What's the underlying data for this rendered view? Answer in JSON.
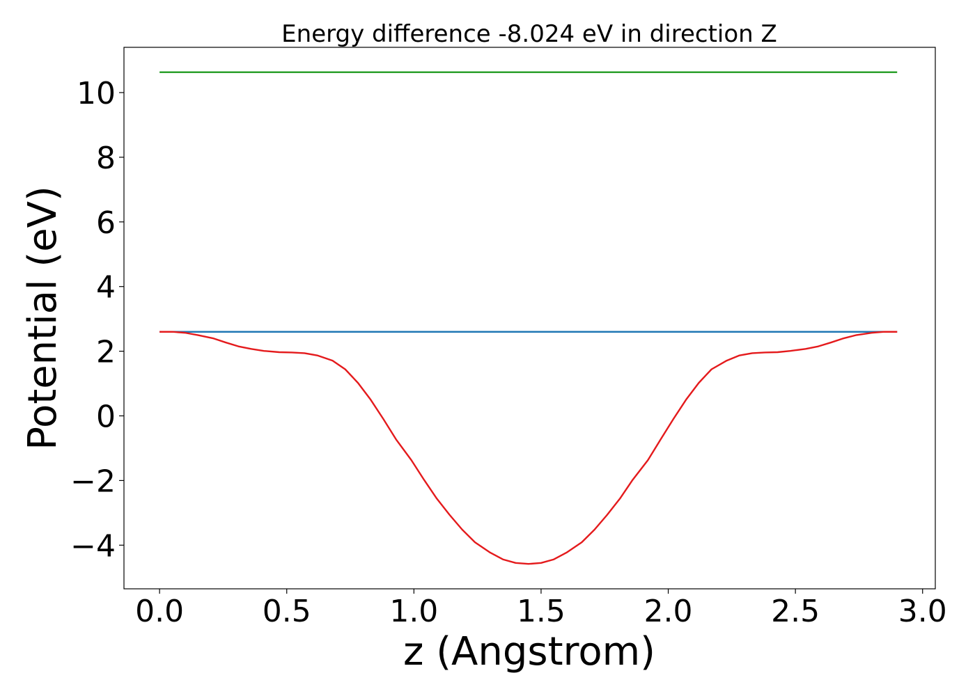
{
  "chart_data": {
    "type": "line",
    "title": "Energy difference -8.024 eV in direction Z",
    "xlabel": "z (Angstrom)",
    "ylabel": "Potential (eV)",
    "xlim": [
      -0.14,
      3.05
    ],
    "ylim": [
      -5.35,
      11.4
    ],
    "xticks": [
      {
        "value": 0.0,
        "label": "0.0"
      },
      {
        "value": 0.5,
        "label": "0.5"
      },
      {
        "value": 1.0,
        "label": "1.0"
      },
      {
        "value": 1.5,
        "label": "1.5"
      },
      {
        "value": 2.0,
        "label": "2.0"
      },
      {
        "value": 2.5,
        "label": "2.5"
      },
      {
        "value": 3.0,
        "label": "3.0"
      }
    ],
    "yticks": [
      {
        "value": -4,
        "label": "−4"
      },
      {
        "value": -2,
        "label": "−2"
      },
      {
        "value": 0,
        "label": "0"
      },
      {
        "value": 2,
        "label": "2"
      },
      {
        "value": 4,
        "label": "4"
      },
      {
        "value": 6,
        "label": "6"
      },
      {
        "value": 8,
        "label": "8"
      },
      {
        "value": 10,
        "label": "10"
      }
    ],
    "grid": false,
    "legend": "none",
    "series": [
      {
        "color": "#2ca02c",
        "x": [
          0.0,
          2.9
        ],
        "y": [
          10.63,
          10.63
        ]
      },
      {
        "color": "#1f77b4",
        "x": [
          0.0,
          2.9
        ],
        "y": [
          2.6,
          2.6
        ]
      },
      {
        "color": "#e41a1c",
        "x": [
          0.0,
          0.05,
          0.1,
          0.15,
          0.21,
          0.26,
          0.31,
          0.36,
          0.41,
          0.47,
          0.52,
          0.57,
          0.62,
          0.68,
          0.73,
          0.78,
          0.83,
          0.88,
          0.93,
          0.99,
          1.04,
          1.09,
          1.14,
          1.19,
          1.24,
          1.3,
          1.35,
          1.4,
          1.45,
          1.5,
          1.55,
          1.6,
          1.66,
          1.71,
          1.76,
          1.81,
          1.86,
          1.92,
          1.97,
          2.02,
          2.07,
          2.12,
          2.17,
          2.23,
          2.28,
          2.33,
          2.38,
          2.43,
          2.48,
          2.54,
          2.59,
          2.64,
          2.69,
          2.74,
          2.8,
          2.85,
          2.9
        ],
        "y": [
          2.6,
          2.6,
          2.57,
          2.5,
          2.4,
          2.27,
          2.15,
          2.07,
          2.01,
          1.97,
          1.96,
          1.94,
          1.87,
          1.71,
          1.44,
          1.02,
          0.5,
          -0.1,
          -0.73,
          -1.37,
          -1.98,
          -2.56,
          -3.06,
          -3.52,
          -3.91,
          -4.23,
          -4.44,
          -4.55,
          -4.58,
          -4.55,
          -4.44,
          -4.23,
          -3.91,
          -3.52,
          -3.06,
          -2.56,
          -1.98,
          -1.37,
          -0.73,
          -0.1,
          0.5,
          1.02,
          1.44,
          1.71,
          1.87,
          1.94,
          1.96,
          1.97,
          2.01,
          2.07,
          2.15,
          2.27,
          2.4,
          2.5,
          2.57,
          2.6,
          2.6
        ]
      }
    ]
  }
}
